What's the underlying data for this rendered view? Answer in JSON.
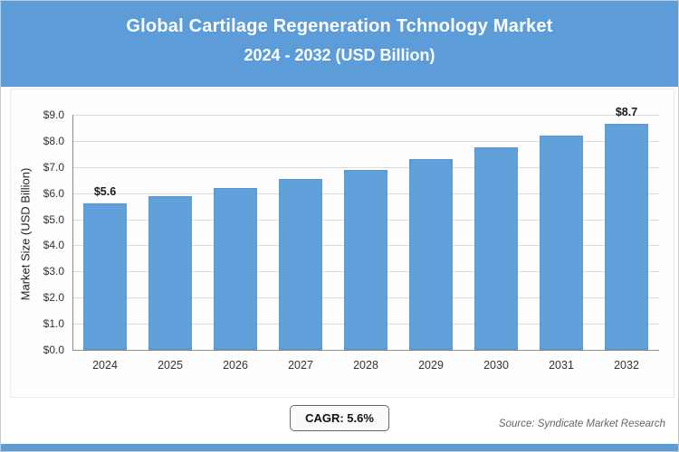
{
  "header": {
    "title_line1": "Global Cartilage Regeneration Tchnology Market",
    "title_line2": "2024 - 2032 (USD Billion)"
  },
  "chart_data": {
    "type": "bar",
    "title": "Global Cartilage Regeneration Tchnology Market 2024 - 2032 (USD Billion)",
    "categories": [
      "2024",
      "2025",
      "2026",
      "2027",
      "2028",
      "2029",
      "2030",
      "2031",
      "2032"
    ],
    "values": [
      5.6,
      5.9,
      6.2,
      6.55,
      6.9,
      7.3,
      7.75,
      8.2,
      8.65
    ],
    "point_labels": [
      "$5.6",
      "",
      "",
      "",
      "",
      "",
      "",
      "",
      "$8.7"
    ],
    "xlabel": "",
    "ylabel": "Market Size (USD Billion)",
    "ylim": [
      0,
      9
    ],
    "ytick_values": [
      0,
      1,
      2,
      3,
      4,
      5,
      6,
      7,
      8,
      9
    ],
    "ytick_labels": [
      "$0.0",
      "$1.0",
      "$2.0",
      "$3.0",
      "$4.0",
      "$5.0",
      "$6.0",
      "$7.0",
      "$8.0",
      "$9.0"
    ],
    "grid": true,
    "legend": false
  },
  "footer": {
    "cagr": "CAGR: 5.6%",
    "source": "Source: Syndicate Market Research"
  },
  "colors": {
    "header_bg": "#5B9CD9",
    "bar": "#60A0DB"
  }
}
